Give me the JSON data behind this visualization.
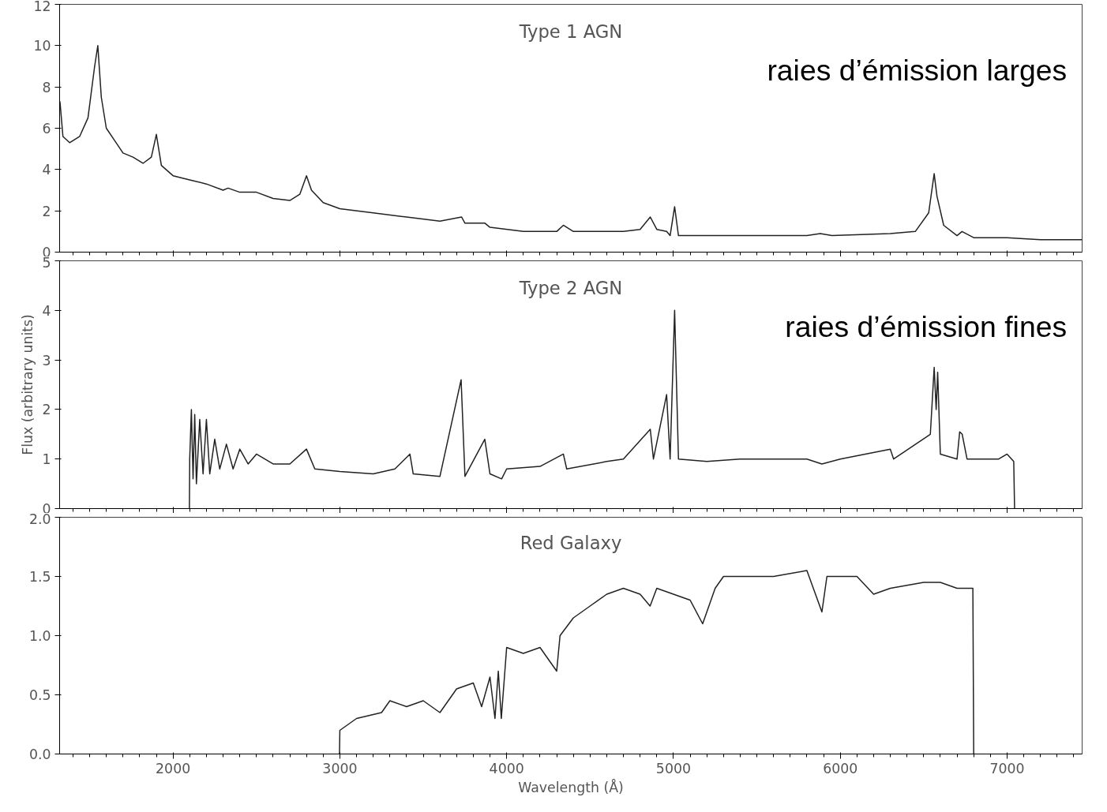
{
  "chart_data": [
    {
      "type": "line",
      "annotations": [
        "Type 1 AGN",
        "raies d’émission larges"
      ],
      "tick_labels": "y",
      "xlim": [
        1320,
        7450
      ],
      "xticks": [
        2000,
        3000,
        4000,
        5000,
        6000,
        7000
      ],
      "ylim": [
        0,
        12
      ],
      "yticks": [
        0,
        2,
        4,
        6,
        8,
        10,
        12
      ],
      "grid": false,
      "line_style": "solid",
      "x": [
        1322,
        1340,
        1380,
        1440,
        1490,
        1530,
        1549,
        1570,
        1600,
        1650,
        1700,
        1760,
        1820,
        1870,
        1900,
        1930,
        2000,
        2100,
        2200,
        2300,
        2330,
        2400,
        2500,
        2600,
        2700,
        2760,
        2800,
        2830,
        2900,
        3000,
        3200,
        3400,
        3600,
        3730,
        3750,
        3870,
        3900,
        4100,
        4300,
        4340,
        4400,
        4600,
        4700,
        4800,
        4861,
        4900,
        4959,
        4980,
        5007,
        5030,
        5500,
        5800,
        5880,
        5950,
        6300,
        6450,
        6530,
        6563,
        6580,
        6620,
        6700,
        6730,
        6800,
        7000,
        7200,
        7450
      ],
      "series": [
        {
          "color": "#222222",
          "values": [
            7.3,
            5.6,
            5.3,
            5.6,
            6.5,
            9.0,
            10.0,
            7.5,
            6.0,
            5.4,
            4.8,
            4.6,
            4.3,
            4.6,
            5.7,
            4.2,
            3.7,
            3.5,
            3.3,
            3.0,
            3.1,
            2.9,
            2.9,
            2.6,
            2.5,
            2.8,
            3.7,
            3.0,
            2.4,
            2.1,
            1.9,
            1.7,
            1.5,
            1.7,
            1.4,
            1.4,
            1.2,
            1.0,
            1.0,
            1.3,
            1.0,
            1.0,
            1.0,
            1.1,
            1.7,
            1.1,
            1.0,
            0.8,
            2.2,
            0.8,
            0.8,
            0.8,
            0.9,
            0.8,
            0.9,
            1.0,
            1.9,
            3.8,
            2.7,
            1.3,
            0.8,
            1.0,
            0.7,
            0.7,
            0.6,
            0.6
          ]
        }
      ]
    },
    {
      "type": "line",
      "annotations": [
        "Type 2 AGN",
        "raies d’émission fines"
      ],
      "ylabel": "Flux (arbitrary units)",
      "tick_labels": "y",
      "xlim": [
        1320,
        7450
      ],
      "xticks": [
        2000,
        3000,
        4000,
        5000,
        6000,
        7000
      ],
      "ylim": [
        0,
        5
      ],
      "yticks": [
        0,
        1,
        2,
        3,
        4,
        5
      ],
      "grid": false,
      "line_style": "solid",
      "x": [
        2098,
        2100,
        2110,
        2120,
        2130,
        2140,
        2160,
        2180,
        2200,
        2220,
        2250,
        2280,
        2320,
        2360,
        2400,
        2450,
        2500,
        2600,
        2700,
        2800,
        2850,
        3000,
        3200,
        3330,
        3420,
        3440,
        3600,
        3727,
        3750,
        3869,
        3900,
        3970,
        4000,
        4200,
        4340,
        4360,
        4600,
        4700,
        4861,
        4880,
        4959,
        4980,
        5007,
        5030,
        5200,
        5400,
        5800,
        5890,
        6000,
        6300,
        6320,
        6540,
        6563,
        6575,
        6584,
        6600,
        6700,
        6716,
        6731,
        6760,
        6950,
        7000,
        7040,
        7045
      ],
      "series": [
        {
          "color": "#222222",
          "values": [
            0,
            1.0,
            2.0,
            0.6,
            1.9,
            0.5,
            1.8,
            0.7,
            1.8,
            0.7,
            1.4,
            0.8,
            1.3,
            0.8,
            1.2,
            0.9,
            1.1,
            0.9,
            0.9,
            1.2,
            0.8,
            0.75,
            0.7,
            0.8,
            1.1,
            0.7,
            0.65,
            2.6,
            0.65,
            1.4,
            0.7,
            0.6,
            0.8,
            0.85,
            1.1,
            0.8,
            0.95,
            1.0,
            1.6,
            1.0,
            2.3,
            1.0,
            4.0,
            1.0,
            0.95,
            1.0,
            1.0,
            0.9,
            1.0,
            1.2,
            1.0,
            1.5,
            2.85,
            2.0,
            2.75,
            1.1,
            1.0,
            1.55,
            1.5,
            1.0,
            1.0,
            1.1,
            0.95,
            0
          ]
        }
      ]
    },
    {
      "type": "line",
      "annotations": [
        "Red Galaxy"
      ],
      "xlabel": "Wavelength (Å)",
      "xlim": [
        1320,
        7450
      ],
      "xticks": [
        2000,
        3000,
        4000,
        5000,
        6000,
        7000
      ],
      "ylim": [
        0,
        2.0
      ],
      "yticks": [
        {
          "value": 0,
          "label": "0.0"
        },
        {
          "value": 0.5,
          "label": "0.5"
        },
        {
          "value": 1,
          "label": "1.0"
        },
        {
          "value": 1.5,
          "label": "1.5"
        },
        {
          "value": 2,
          "label": "2.0"
        }
      ],
      "grid": false,
      "line_style": "solid",
      "x": [
        2998,
        3000,
        3100,
        3250,
        3300,
        3400,
        3500,
        3600,
        3700,
        3800,
        3850,
        3900,
        3930,
        3950,
        3968,
        4000,
        4100,
        4200,
        4300,
        4320,
        4400,
        4500,
        4600,
        4700,
        4800,
        4860,
        4900,
        5000,
        5100,
        5175,
        5250,
        5300,
        5400,
        5600,
        5800,
        5890,
        5920,
        6000,
        6100,
        6200,
        6300,
        6500,
        6600,
        6700,
        6795,
        6800
      ],
      "series": [
        {
          "color": "#222222",
          "values": [
            0,
            0.2,
            0.3,
            0.35,
            0.45,
            0.4,
            0.45,
            0.35,
            0.55,
            0.6,
            0.4,
            0.65,
            0.3,
            0.7,
            0.3,
            0.9,
            0.85,
            0.9,
            0.7,
            1.0,
            1.15,
            1.25,
            1.35,
            1.4,
            1.35,
            1.25,
            1.4,
            1.35,
            1.3,
            1.1,
            1.4,
            1.5,
            1.5,
            1.5,
            1.55,
            1.2,
            1.5,
            1.5,
            1.5,
            1.35,
            1.4,
            1.45,
            1.45,
            1.4,
            1.4,
            0
          ]
        }
      ]
    }
  ]
}
